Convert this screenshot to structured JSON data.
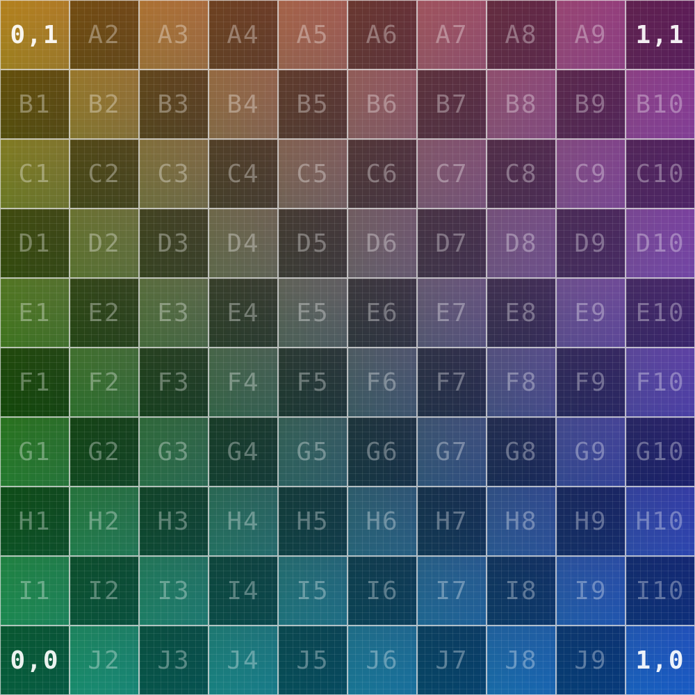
{
  "rows": [
    [
      "0,1",
      "A2",
      "A3",
      "A4",
      "A5",
      "A6",
      "A7",
      "A8",
      "A9",
      "1,1"
    ],
    [
      "B1",
      "B2",
      "B3",
      "B4",
      "B5",
      "B6",
      "B7",
      "B8",
      "B9",
      "B10"
    ],
    [
      "C1",
      "C2",
      "C3",
      "C4",
      "C5",
      "C6",
      "C7",
      "C8",
      "C9",
      "C10"
    ],
    [
      "D1",
      "D2",
      "D3",
      "D4",
      "D5",
      "D6",
      "D7",
      "D8",
      "D9",
      "D10"
    ],
    [
      "E1",
      "E2",
      "E3",
      "E4",
      "E5",
      "E6",
      "E7",
      "E8",
      "E9",
      "E10"
    ],
    [
      "F1",
      "F2",
      "F3",
      "F4",
      "F5",
      "F6",
      "F7",
      "F8",
      "F9",
      "F10"
    ],
    [
      "G1",
      "G2",
      "G3",
      "G4",
      "G5",
      "G6",
      "G7",
      "G8",
      "G9",
      "G10"
    ],
    [
      "H1",
      "H2",
      "H3",
      "H4",
      "H5",
      "H6",
      "H7",
      "H8",
      "H9",
      "H10"
    ],
    [
      "I1",
      "I2",
      "I3",
      "I4",
      "I5",
      "I6",
      "I7",
      "I8",
      "I9",
      "I10"
    ],
    [
      "0,0",
      "J2",
      "J3",
      "J4",
      "J5",
      "J6",
      "J7",
      "J8",
      "J9",
      "1,0"
    ]
  ],
  "colors": {
    "top_left": "#b07a10",
    "top_right": "#8a2a80",
    "bottom_left": "#0a8a5a",
    "bottom_right": "#0a50c0"
  }
}
